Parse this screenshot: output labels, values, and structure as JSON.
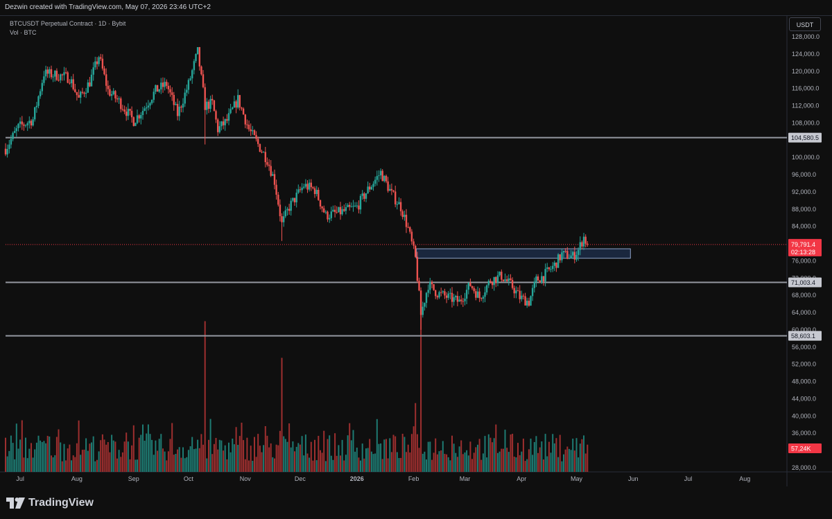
{
  "header": {
    "attribution": "Dezwin created with TradingView.com, May 07, 2026 23:46 UTC+2"
  },
  "legend": {
    "symbol_line": "BTCUSDT Perpetual Contract · 1D · Bybit",
    "volume_line": "Vol · BTC"
  },
  "currency_button": "USDT",
  "footer": {
    "brand": "TradingView",
    "logo_icon": "tradingview-logo-icon"
  },
  "colors": {
    "background": "#0f0f0f",
    "up": "#26a69a",
    "down": "#ef5350",
    "volume_up": "#1e7b73",
    "volume_down": "#9e2f2f",
    "level_line": "#9598a1",
    "zone_fill": "#1c2a44",
    "zone_border": "#8fa3c8",
    "price_label": "#f23645"
  },
  "chart_data": {
    "type": "candlestick",
    "symbol": "BTCUSDT Perpetual Contract",
    "interval": "1D",
    "exchange": "Bybit",
    "y_axis": {
      "ticks": [
        128000,
        124000,
        120000,
        116000,
        112000,
        108000,
        100000,
        96000,
        92000,
        88000,
        84000,
        76000,
        72000,
        68000,
        64000,
        60000,
        56000,
        52000,
        48000,
        44000,
        40000,
        36000,
        28000
      ],
      "tick_labels": [
        "128,000.0",
        "124,000.0",
        "120,000.0",
        "116,000.0",
        "112,000.0",
        "108,000.0",
        "100,000.0",
        "96,000.0",
        "92,000.0",
        "88,000.0",
        "84,000.0",
        "76,000.0",
        "72,000.0",
        "68,000.0",
        "64,000.0",
        "60,000.0",
        "56,000.0",
        "52,000.0",
        "48,000.0",
        "44,000.0",
        "40,000.0",
        "36,000.0",
        "28,000.0"
      ],
      "ylim": [
        25000,
        131000
      ]
    },
    "x_axis": {
      "tick_labels": [
        "Jul",
        "Aug",
        "Sep",
        "Oct",
        "Nov",
        "Dec",
        "2026",
        "Feb",
        "Mar",
        "Apr",
        "May",
        "Jun",
        "Jul",
        "Aug"
      ],
      "tick_dates": [
        "2025-07-01",
        "2025-08-01",
        "2025-09-01",
        "2025-10-01",
        "2025-11-01",
        "2025-12-01",
        "2026-01-01",
        "2026-02-01",
        "2026-03-01",
        "2026-04-01",
        "2026-05-01",
        "2026-06-01",
        "2026-07-01",
        "2026-08-01"
      ],
      "bold_labels": [
        "2026"
      ],
      "range": [
        "2025-06-23",
        "2026-08-24"
      ]
    },
    "levels": [
      {
        "value": 104580.5,
        "label": "104,580.5"
      },
      {
        "value": 71003.4,
        "label": "71,003.4"
      },
      {
        "value": 58603.1,
        "label": "58,603.1"
      }
    ],
    "zone": {
      "start": "2026-02-01",
      "end": "2026-06-01",
      "low": 76600,
      "high": 78800
    },
    "last_price": {
      "value": 79791.4,
      "label": "79,791.4",
      "countdown": "02:13:28"
    },
    "volume": {
      "last_label": "57,24K"
    },
    "anchors": [
      [
        "2025-06-23",
        102000
      ],
      [
        "2025-06-30",
        107000
      ],
      [
        "2025-07-08",
        108800
      ],
      [
        "2025-07-14",
        119500
      ],
      [
        "2025-07-22",
        119000
      ],
      [
        "2025-07-28",
        118500
      ],
      [
        "2025-08-02",
        113500
      ],
      [
        "2025-08-08",
        117500
      ],
      [
        "2025-08-13",
        123500
      ],
      [
        "2025-08-18",
        115500
      ],
      [
        "2025-08-24",
        113000
      ],
      [
        "2025-09-01",
        108500
      ],
      [
        "2025-09-06",
        111000
      ],
      [
        "2025-09-13",
        115500
      ],
      [
        "2025-09-19",
        117000
      ],
      [
        "2025-09-25",
        110000
      ],
      [
        "2025-10-01",
        117000
      ],
      [
        "2025-10-06",
        124500
      ],
      [
        "2025-10-10",
        112000
      ],
      [
        "2025-10-14",
        112500
      ],
      [
        "2025-10-17",
        106500
      ],
      [
        "2025-10-22",
        108500
      ],
      [
        "2025-10-28",
        113500
      ],
      [
        "2025-11-03",
        106500
      ],
      [
        "2025-11-08",
        103000
      ],
      [
        "2025-11-13",
        99500
      ],
      [
        "2025-11-17",
        94500
      ],
      [
        "2025-11-21",
        84500
      ],
      [
        "2025-11-25",
        88500
      ],
      [
        "2025-12-03",
        93500
      ],
      [
        "2025-12-09",
        92500
      ],
      [
        "2025-12-15",
        86500
      ],
      [
        "2025-12-25",
        87500
      ],
      [
        "2026-01-01",
        88500
      ],
      [
        "2026-01-07",
        92500
      ],
      [
        "2026-01-14",
        96500
      ],
      [
        "2026-01-20",
        91500
      ],
      [
        "2026-01-25",
        88500
      ],
      [
        "2026-01-29",
        83500
      ],
      [
        "2026-02-02",
        76500
      ],
      [
        "2026-02-05",
        63500
      ],
      [
        "2026-02-09",
        70500
      ],
      [
        "2026-02-14",
        68500
      ],
      [
        "2026-02-20",
        67500
      ],
      [
        "2026-02-26",
        66500
      ],
      [
        "2026-03-04",
        70500
      ],
      [
        "2026-03-09",
        67500
      ],
      [
        "2026-03-15",
        71500
      ],
      [
        "2026-03-21",
        72500
      ],
      [
        "2026-03-27",
        70000
      ],
      [
        "2026-03-31",
        67500
      ],
      [
        "2026-04-05",
        66500
      ],
      [
        "2026-04-09",
        71500
      ],
      [
        "2026-04-13",
        72500
      ],
      [
        "2026-04-19",
        75000
      ],
      [
        "2026-04-23",
        77500
      ],
      [
        "2026-04-29",
        77000
      ],
      [
        "2026-05-02",
        78500
      ],
      [
        "2026-05-05",
        81500
      ],
      [
        "2026-05-07",
        79791.4
      ]
    ],
    "special_wicks": [
      [
        "2025-10-10",
        103000
      ],
      [
        "2025-11-21",
        80600
      ],
      [
        "2026-02-05",
        60000
      ],
      [
        "2026-05-05",
        82500
      ]
    ],
    "volume_spikes": [
      [
        "2025-10-10",
        62000
      ],
      [
        "2025-11-21",
        53500
      ],
      [
        "2026-02-05",
        67000
      ],
      [
        "2026-02-02",
        43000
      ]
    ]
  }
}
